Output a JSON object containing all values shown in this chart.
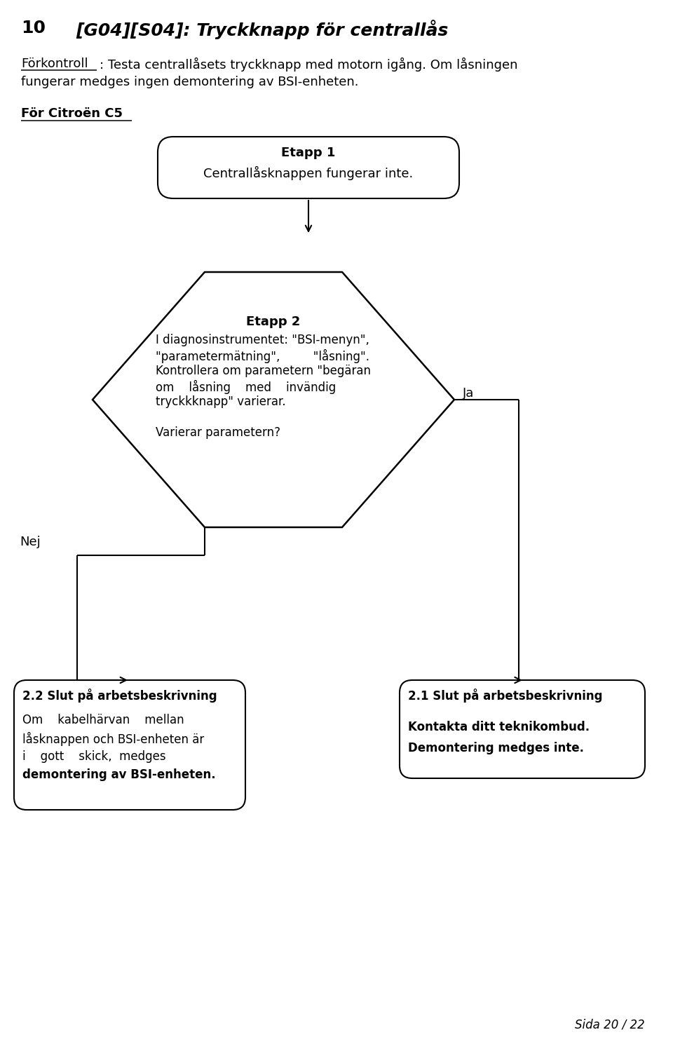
{
  "title_num": "10",
  "title_text": "[G04][S04]: Tryckknapp för centrallås",
  "precheck_label": "Förkontroll",
  "precheck_rest": ": Testa centrallåsets tryckknapp med motorn igång. Om låsningen",
  "precheck_line2": "fungerar medges ingen demontering av BSI-enheten.",
  "for_citro_label": "För Citroën C5",
  "etapp1_title": "Etapp 1",
  "etapp1_body": "Centrallåsknappen fungerar inte.",
  "etapp2_title": "Etapp 2",
  "etapp2_lines": [
    "I diagnosinstrumentet: \"BSI-menyn\",",
    "\"parametermätning\",         \"låsning\".",
    "Kontrollera om parametern \"begäran",
    "om    låsning    med    invändig",
    "tryckkknapp\" varierar.",
    "",
    "Varierar parametern?"
  ],
  "ja_label": "Ja",
  "nej_label": "Nej",
  "box22_title": "2.2 Slut på arbetsbeskrivning",
  "box22_lines": [
    [
      "normal",
      "Om    kabelhärvan    mellan"
    ],
    [
      "normal",
      "låsknappen och BSI-enheten är"
    ],
    [
      "normal",
      "i    gott    skick,  "
    ],
    [
      "bold",
      "medges"
    ],
    [
      "bold",
      "demontering av BSI-enheten."
    ]
  ],
  "box21_title": "2.1 Slut på arbetsbeskrivning",
  "box21_line1": "Kontakta ditt teknikombud.",
  "box21_line2": "Demontering medges inte.",
  "page_label": "Sida 20 / 22",
  "bg_color": "#ffffff",
  "text_color": "#000000"
}
